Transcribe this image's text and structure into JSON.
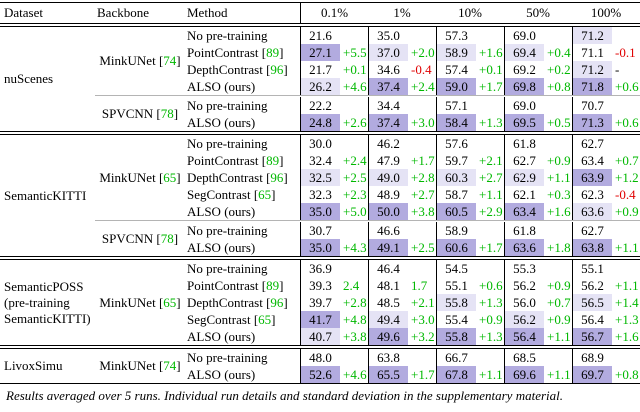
{
  "colors": {
    "highlight_dark": "#b2abdf",
    "highlight_light": "#e5e3f5",
    "green": "#00b800",
    "red": "#e00000",
    "rule_gray": "#b4b4b4"
  },
  "header": {
    "dataset": "Dataset",
    "backbone": "Backbone",
    "method": "Method",
    "percentages": [
      "0.1%",
      "1%",
      "10%",
      "50%",
      "100%"
    ]
  },
  "footer": {
    "note": "Results averaged over 5 runs. Individual run details and standard deviation in the supplementary material."
  },
  "groups": [
    {
      "dataset_lines": [
        "nuScenes"
      ],
      "blocks": [
        {
          "backbone": {
            "name": "MinkUNet",
            "cite": "74"
          },
          "rows": [
            {
              "method": {
                "name": "No pre-training",
                "cite": ""
              },
              "cells": [
                [
                  "21.6",
                  "",
                  "",
                  ""
                ],
                [
                  "35.0",
                  "",
                  "",
                  ""
                ],
                [
                  "57.3",
                  "",
                  "",
                  ""
                ],
                [
                  "69.0",
                  "",
                  "",
                  ""
                ],
                [
                  "71.2",
                  "",
                  "light",
                  ""
                ]
              ]
            },
            {
              "method": {
                "name": "PointContrast",
                "cite": "89"
              },
              "cells": [
                [
                  "27.1",
                  "+5.5",
                  "dark",
                  "green"
                ],
                [
                  "37.0",
                  "+2.0",
                  "light",
                  "green"
                ],
                [
                  "58.9",
                  "+1.6",
                  "light",
                  "green"
                ],
                [
                  "69.4",
                  "+0.4",
                  "light",
                  "green"
                ],
                [
                  "71.1",
                  "-0.1",
                  "",
                  "red"
                ]
              ]
            },
            {
              "method": {
                "name": "DepthContrast",
                "cite": "96"
              },
              "cells": [
                [
                  "21.7",
                  "+0.1",
                  "",
                  "green"
                ],
                [
                  "34.6",
                  "-0.4",
                  "",
                  "red"
                ],
                [
                  "57.4",
                  "+0.1",
                  "",
                  "green"
                ],
                [
                  "69.2",
                  "+0.2",
                  "",
                  "green"
                ],
                [
                  "71.2",
                  "-",
                  "light",
                  "black"
                ]
              ]
            },
            {
              "method": {
                "name": "ALSO (ours)",
                "cite": ""
              },
              "cells": [
                [
                  "26.2",
                  "+4.6",
                  "light",
                  "green"
                ],
                [
                  "37.4",
                  "+2.4",
                  "dark",
                  "green"
                ],
                [
                  "59.0",
                  "+1.7",
                  "dark",
                  "green"
                ],
                [
                  "69.8",
                  "+0.8",
                  "dark",
                  "green"
                ],
                [
                  "71.8",
                  "+0.6",
                  "dark",
                  "green"
                ]
              ]
            }
          ]
        },
        {
          "backbone": {
            "name": "SPVCNN",
            "cite": "78"
          },
          "rows": [
            {
              "method": {
                "name": "No pre-training",
                "cite": ""
              },
              "cells": [
                [
                  "22.2",
                  "",
                  "",
                  ""
                ],
                [
                  "34.4",
                  "",
                  "",
                  ""
                ],
                [
                  "57.1",
                  "",
                  "",
                  ""
                ],
                [
                  "69.0",
                  "",
                  "",
                  ""
                ],
                [
                  "70.7",
                  "",
                  "",
                  ""
                ]
              ]
            },
            {
              "method": {
                "name": "ALSO (ours)",
                "cite": ""
              },
              "cells": [
                [
                  "24.8",
                  "+2.6",
                  "dark",
                  "green"
                ],
                [
                  "37.4",
                  "+3.0",
                  "dark",
                  "green"
                ],
                [
                  "58.4",
                  "+1.3",
                  "dark",
                  "green"
                ],
                [
                  "69.5",
                  "+0.5",
                  "dark",
                  "green"
                ],
                [
                  "71.3",
                  "+0.6",
                  "dark",
                  "green"
                ]
              ]
            }
          ]
        }
      ]
    },
    {
      "dataset_lines": [
        "SemanticKITTI"
      ],
      "blocks": [
        {
          "backbone": {
            "name": "MinkUNet",
            "cite": "65"
          },
          "rows": [
            {
              "method": {
                "name": "No pre-training",
                "cite": ""
              },
              "cells": [
                [
                  "30.0",
                  "",
                  "",
                  ""
                ],
                [
                  "46.2",
                  "",
                  "",
                  ""
                ],
                [
                  "57.6",
                  "",
                  "",
                  ""
                ],
                [
                  "61.8",
                  "",
                  "",
                  ""
                ],
                [
                  "62.7",
                  "",
                  "",
                  ""
                ]
              ]
            },
            {
              "method": {
                "name": "PointContrast",
                "cite": "89"
              },
              "cells": [
                [
                  "32.4",
                  "+2.4",
                  "",
                  "green"
                ],
                [
                  "47.9",
                  "+1.7",
                  "",
                  "green"
                ],
                [
                  "59.7",
                  "+2.1",
                  "",
                  "green"
                ],
                [
                  "62.7",
                  "+0.9",
                  "",
                  "green"
                ],
                [
                  "63.4",
                  "+0.7",
                  "",
                  "green"
                ]
              ]
            },
            {
              "method": {
                "name": "DepthContrast",
                "cite": "96"
              },
              "cells": [
                [
                  "32.5",
                  "+2.5",
                  "light",
                  "green"
                ],
                [
                  "49.0",
                  "+2.8",
                  "light",
                  "green"
                ],
                [
                  "60.3",
                  "+2.7",
                  "light",
                  "green"
                ],
                [
                  "62.9",
                  "+1.1",
                  "light",
                  "green"
                ],
                [
                  "63.9",
                  "+1.2",
                  "dark",
                  "green"
                ]
              ]
            },
            {
              "method": {
                "name": "SegContrast",
                "cite": "65"
              },
              "cells": [
                [
                  "32.3",
                  "+2.3",
                  "",
                  "green"
                ],
                [
                  "48.9",
                  "+2.7",
                  "",
                  "green"
                ],
                [
                  "58.7",
                  "+1.1",
                  "",
                  "green"
                ],
                [
                  "62.1",
                  "+0.3",
                  "",
                  "green"
                ],
                [
                  "62.3",
                  "-0.4",
                  "",
                  "red"
                ]
              ]
            },
            {
              "method": {
                "name": "ALSO (ours)",
                "cite": ""
              },
              "cells": [
                [
                  "35.0",
                  "+5.0",
                  "dark",
                  "green"
                ],
                [
                  "50.0",
                  "+3.8",
                  "dark",
                  "green"
                ],
                [
                  "60.5",
                  "+2.9",
                  "dark",
                  "green"
                ],
                [
                  "63.4",
                  "+1.6",
                  "dark",
                  "green"
                ],
                [
                  "63.6",
                  "+0.9",
                  "light",
                  "green"
                ]
              ]
            }
          ]
        },
        {
          "backbone": {
            "name": "SPVCNN",
            "cite": "78"
          },
          "rows": [
            {
              "method": {
                "name": "No pre-training",
                "cite": ""
              },
              "cells": [
                [
                  "30.7",
                  "",
                  "",
                  ""
                ],
                [
                  "46.6",
                  "",
                  "",
                  ""
                ],
                [
                  "58.9",
                  "",
                  "",
                  ""
                ],
                [
                  "61.8",
                  "",
                  "",
                  ""
                ],
                [
                  "62.7",
                  "",
                  "",
                  ""
                ]
              ]
            },
            {
              "method": {
                "name": "ALSO (ours)",
                "cite": ""
              },
              "cells": [
                [
                  "35.0",
                  "+4.3",
                  "dark",
                  "green"
                ],
                [
                  "49.1",
                  "+2.5",
                  "dark",
                  "green"
                ],
                [
                  "60.6",
                  "+1.7",
                  "dark",
                  "green"
                ],
                [
                  "63.6",
                  "+1.8",
                  "dark",
                  "green"
                ],
                [
                  "63.8",
                  "+1.1",
                  "dark",
                  "green"
                ]
              ]
            }
          ]
        }
      ]
    },
    {
      "dataset_lines": [
        "SemanticPOSS",
        "(pre-training",
        "SemanticKITTI)"
      ],
      "blocks": [
        {
          "backbone": {
            "name": "MinkUNet",
            "cite": "65"
          },
          "rows": [
            {
              "method": {
                "name": "No pre-training",
                "cite": ""
              },
              "cells": [
                [
                  "36.9",
                  "",
                  "",
                  ""
                ],
                [
                  "46.4",
                  "",
                  "",
                  ""
                ],
                [
                  "54.5",
                  "",
                  "",
                  ""
                ],
                [
                  "55.3",
                  "",
                  "",
                  ""
                ],
                [
                  "55.1",
                  "",
                  "",
                  ""
                ]
              ]
            },
            {
              "method": {
                "name": "PointContrast",
                "cite": "89"
              },
              "cells": [
                [
                  "39.3",
                  "2.4",
                  "",
                  "green"
                ],
                [
                  "48.1",
                  "1.7",
                  "",
                  "green"
                ],
                [
                  "55.1",
                  "+0.6",
                  "",
                  "green"
                ],
                [
                  "56.2",
                  "+0.9",
                  "",
                  "green"
                ],
                [
                  "56.2",
                  "+1.1",
                  "",
                  "green"
                ]
              ]
            },
            {
              "method": {
                "name": "DepthContrast",
                "cite": "96"
              },
              "cells": [
                [
                  "39.7",
                  "+2.8",
                  "",
                  "green"
                ],
                [
                  "48.5",
                  "+2.1",
                  "",
                  "green"
                ],
                [
                  "55.8",
                  "+1.3",
                  "light",
                  "green"
                ],
                [
                  "56.0",
                  "+0.7",
                  "",
                  "green"
                ],
                [
                  "56.5",
                  "+1.4",
                  "light",
                  "green"
                ]
              ]
            },
            {
              "method": {
                "name": "SegContrast",
                "cite": "65"
              },
              "cells": [
                [
                  "41.7",
                  "+4.8",
                  "dark",
                  "green"
                ],
                [
                  "49.4",
                  "+3.0",
                  "light",
                  "green"
                ],
                [
                  "55.4",
                  "+0.9",
                  "",
                  "green"
                ],
                [
                  "56.2",
                  "+0.9",
                  "light",
                  "green"
                ],
                [
                  "56.4",
                  "+1.3",
                  "",
                  "green"
                ]
              ]
            },
            {
              "method": {
                "name": "ALSO (ours)",
                "cite": ""
              },
              "cells": [
                [
                  "40.7",
                  "+3.8",
                  "light",
                  "green"
                ],
                [
                  "49.6",
                  "+3.2",
                  "dark",
                  "green"
                ],
                [
                  "55.8",
                  "+1.3",
                  "dark",
                  "green"
                ],
                [
                  "56.4",
                  "+1.1",
                  "dark",
                  "green"
                ],
                [
                  "56.7",
                  "+1.6",
                  "dark",
                  "green"
                ]
              ]
            }
          ]
        }
      ]
    },
    {
      "dataset_lines": [
        "LivoxSimu"
      ],
      "blocks": [
        {
          "backbone": {
            "name": "MinkUNet",
            "cite": "74"
          },
          "rows": [
            {
              "method": {
                "name": "No pre-training",
                "cite": ""
              },
              "cells": [
                [
                  "48.0",
                  "",
                  "",
                  ""
                ],
                [
                  "63.8",
                  "",
                  "",
                  ""
                ],
                [
                  "66.7",
                  "",
                  "",
                  ""
                ],
                [
                  "68.5",
                  "",
                  "",
                  ""
                ],
                [
                  "68.9",
                  "",
                  "",
                  ""
                ]
              ]
            },
            {
              "method": {
                "name": "ALSO (ours)",
                "cite": ""
              },
              "cells": [
                [
                  "52.6",
                  "+4.6",
                  "dark",
                  "green"
                ],
                [
                  "65.5",
                  "+1.7",
                  "dark",
                  "green"
                ],
                [
                  "67.8",
                  "+1.1",
                  "dark",
                  "green"
                ],
                [
                  "69.6",
                  "+1.1",
                  "dark",
                  "green"
                ],
                [
                  "69.7",
                  "+0.8",
                  "dark",
                  "green"
                ]
              ]
            }
          ]
        }
      ]
    }
  ]
}
